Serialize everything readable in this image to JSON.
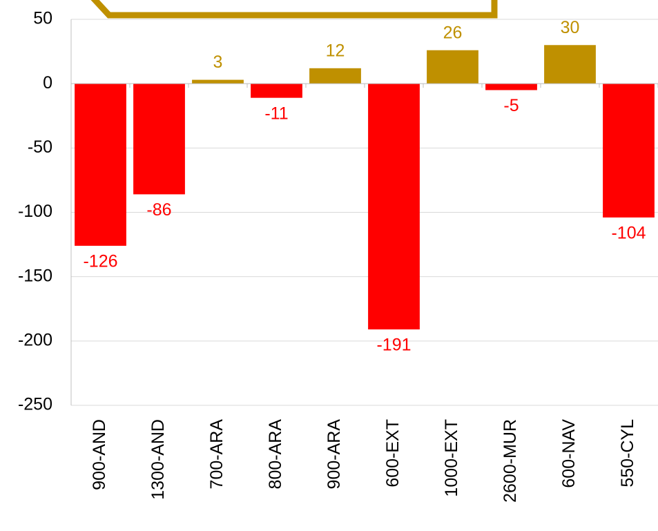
{
  "chart_data": {
    "type": "bar",
    "categories": [
      "900-AND",
      "1300-AND",
      "700-ARA",
      "800-ARA",
      "900-ARA",
      "600-EXT",
      "1000-EXT",
      "2600-MUR",
      "600-NAV",
      "550-CYL"
    ],
    "values": [
      -126,
      -86,
      3,
      -11,
      12,
      -191,
      26,
      -5,
      30,
      -104
    ],
    "positive_color": "#bf9000",
    "negative_color": "#ff0000",
    "ylim": [
      -250,
      50
    ],
    "yticks": [
      -250,
      -200,
      -150,
      -100,
      -50,
      0,
      50
    ],
    "grid": true
  }
}
